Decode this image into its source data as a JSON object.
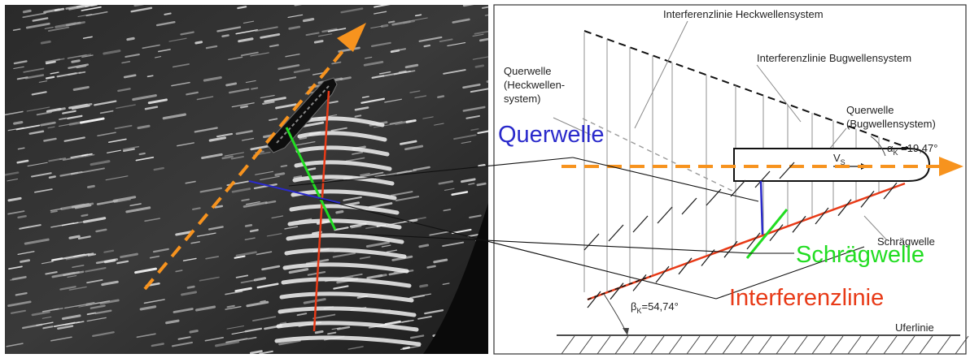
{
  "colors": {
    "querwelle": "#2a2acb",
    "schraegwelle": "#22dd22",
    "interferenzlinie": "#e83a17",
    "course": "#f7931e",
    "dashed_black": "#111111",
    "gray_line": "#9a9a9a"
  },
  "diagram": {
    "label_interferenz_heck": "Interferenzlinie Heckwellensystem",
    "label_interferenz_bug": "Interferenzlinie Bugwellensystem",
    "label_querwelle_heck_1": "Querwelle",
    "label_querwelle_heck_2": "(Heckwellen-",
    "label_querwelle_heck_3": "system)",
    "label_querwelle_bug_1": "Querwelle",
    "label_querwelle_bug_2": "(Bugwellensystem)",
    "alpha_symbol": "α",
    "alpha_sub": "K",
    "alpha_value": " =19,47°",
    "beta_symbol": "β",
    "beta_sub": "K",
    "beta_value": "=54,74°",
    "v_symbol": "V",
    "v_sub": "S",
    "label_schraegwelle_small": "Schrägwelle",
    "label_uferlinie": "Uferlinie",
    "big_querwelle": "Querwelle",
    "big_schraegwelle": "Schrägwelle",
    "big_interferenzlinie": "Interferenzlinie"
  }
}
